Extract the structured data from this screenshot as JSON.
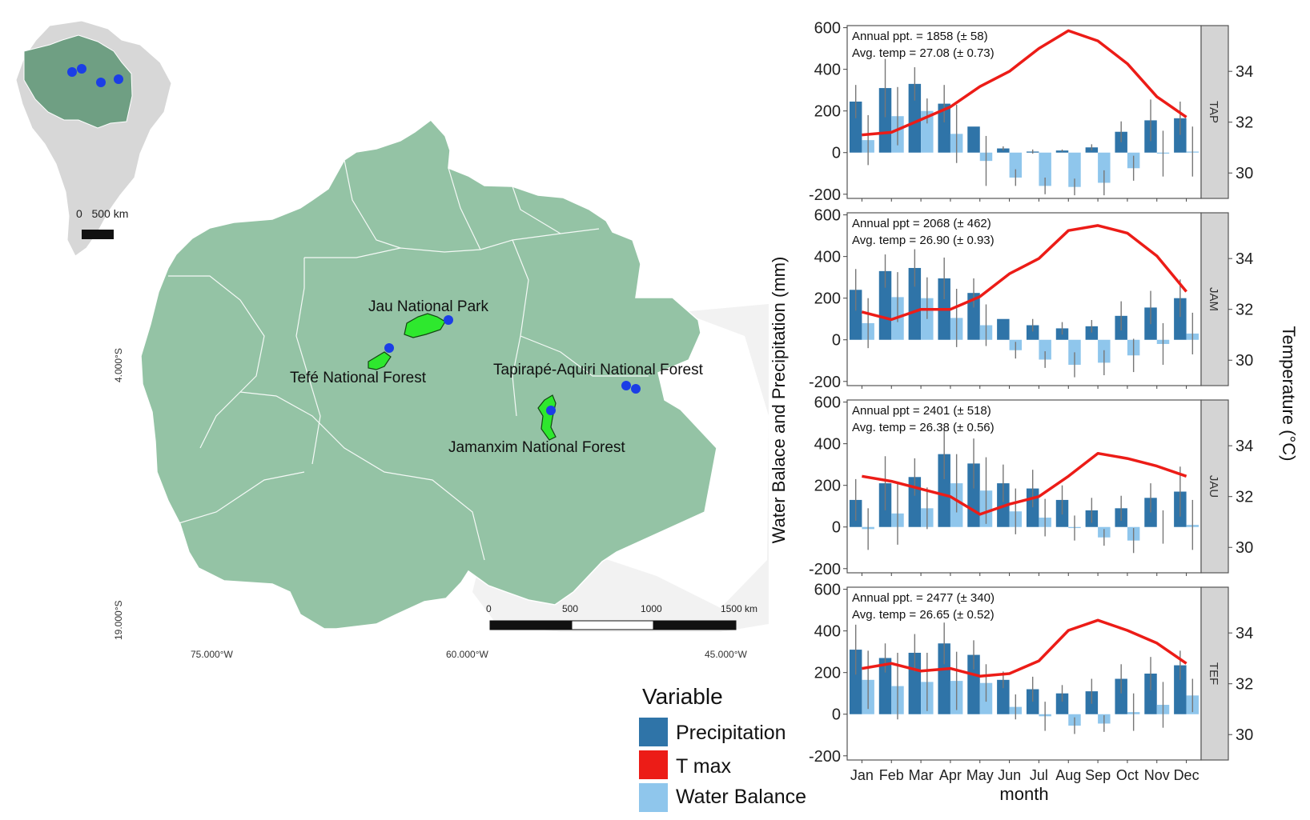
{
  "colors": {
    "precipitation": "#2f74a8",
    "water_balance": "#8fc6ec",
    "tmax": "#ec1c17",
    "study_region": "#94c3a5",
    "land": "#d7d7d7",
    "parks": "#2ee82e",
    "markers": "#1b3ee6",
    "strip": "#d4d4d4"
  },
  "map": {
    "park_labels": [
      "Jau National Park",
      "Tefé National Forest",
      "Tapirapé-Aquiri National Forest",
      "Jamanxim National Forest"
    ],
    "lat_labels": [
      "4.000°S",
      "19.000°S"
    ],
    "lon_labels": [
      "75.000°W",
      "60.000°W",
      "45.000°W"
    ],
    "scalebar_ticks": [
      "0",
      "500",
      "1000",
      "1500 km"
    ],
    "inset_scale_label": "0   500 km"
  },
  "legend": {
    "title": "Variable",
    "items": [
      "Precipitation",
      "T max",
      "Water Balance"
    ]
  },
  "chart_data": {
    "type": "bar",
    "title": "",
    "xlabel": "month",
    "ylabel": "Water Balace and Precipitation (mm)",
    "y2label": "Temperature (°C)",
    "categories": [
      "Jan",
      "Feb",
      "Mar",
      "Apr",
      "May",
      "Jun",
      "Jul",
      "Aug",
      "Sep",
      "Oct",
      "Nov",
      "Dec"
    ],
    "ylim": [
      -220,
      610
    ],
    "yticks": [
      "600",
      "400",
      "200",
      "0",
      "-200"
    ],
    "y2lim": [
      29,
      35.8
    ],
    "y2ticks": [
      "34",
      "32",
      "30"
    ],
    "y2tick_values": [
      34,
      32,
      30
    ],
    "panels": [
      {
        "strip": "TAP",
        "annotation1": "Annual ppt. = 1858 (± 58)",
        "annotation2": "Avg.  temp = 27.08 (± 0.73)",
        "series": [
          {
            "name": "Precipitation",
            "values": [
              245,
              310,
              330,
              235,
              125,
              20,
              5,
              10,
              25,
              100,
              155,
              165
            ],
            "errors": [
              80,
              140,
              80,
              90,
              0,
              10,
              10,
              5,
              15,
              50,
              100,
              80
            ]
          },
          {
            "name": "Water Balance",
            "values": [
              60,
              175,
              200,
              90,
              -40,
              -120,
              -160,
              -165,
              -145,
              -75,
              -5,
              5
            ],
            "errors": [
              120,
              140,
              60,
              140,
              120,
              40,
              40,
              40,
              60,
              60,
              110,
              120
            ]
          },
          {
            "name": "T max",
            "values": [
              31.5,
              31.6,
              32.1,
              32.6,
              33.4,
              34.0,
              34.9,
              35.6,
              35.2,
              34.3,
              33.0,
              32.2
            ]
          }
        ]
      },
      {
        "strip": "JAM",
        "annotation1": "Annual ppt = 2068 (± 462)",
        "annotation2": "Avg.  temp = 26.90 (± 0.93)",
        "series": [
          {
            "name": "Precipitation",
            "values": [
              240,
              330,
              345,
              295,
              225,
              100,
              70,
              55,
              65,
              115,
              155,
              200
            ],
            "errors": [
              100,
              80,
              90,
              100,
              70,
              0,
              30,
              30,
              30,
              70,
              80,
              90
            ]
          },
          {
            "name": "Water Balance",
            "values": [
              80,
              205,
              200,
              105,
              70,
              -50,
              -95,
              -120,
              -110,
              -75,
              -20,
              30
            ],
            "errors": [
              120,
              120,
              100,
              140,
              100,
              40,
              40,
              60,
              60,
              80,
              100,
              100
            ]
          },
          {
            "name": "T max",
            "values": [
              31.9,
              31.6,
              32.0,
              32.0,
              32.5,
              33.4,
              34.0,
              35.1,
              35.3,
              35.0,
              34.1,
              32.7
            ]
          }
        ]
      },
      {
        "strip": "JAU",
        "annotation1": "Annual ppt = 2401 (± 518)",
        "annotation2": "Avg.  temp = 26.38 (± 0.56)",
        "series": [
          {
            "name": "Precipitation",
            "values": [
              130,
              210,
              240,
              350,
              305,
              210,
              185,
              130,
              80,
              90,
              140,
              170
            ],
            "errors": [
              100,
              130,
              90,
              120,
              120,
              90,
              90,
              70,
              60,
              60,
              70,
              120
            ]
          },
          {
            "name": "Water Balance",
            "values": [
              -10,
              65,
              90,
              210,
              175,
              75,
              45,
              -5,
              -50,
              -65,
              0,
              10
            ],
            "errors": [
              100,
              150,
              100,
              140,
              160,
              110,
              90,
              60,
              40,
              60,
              80,
              120
            ]
          },
          {
            "name": "T max",
            "values": [
              32.8,
              32.6,
              32.3,
              32.0,
              31.3,
              31.7,
              32.0,
              32.8,
              33.7,
              33.5,
              33.2,
              32.8
            ]
          }
        ]
      },
      {
        "strip": "TEF",
        "annotation1": "Annual ppt. = 2477 (± 340)",
        "annotation2": "Avg.  temp = 26.65 (± 0.52)",
        "series": [
          {
            "name": "Precipitation",
            "values": [
              310,
              270,
              295,
              340,
              285,
              165,
              120,
              100,
              110,
              170,
              195,
              235
            ],
            "errors": [
              120,
              70,
              90,
              100,
              70,
              40,
              60,
              40,
              60,
              70,
              80,
              70
            ]
          },
          {
            "name": "Water Balance",
            "values": [
              165,
              135,
              155,
              160,
              150,
              35,
              -10,
              -55,
              -45,
              10,
              45,
              90
            ],
            "errors": [
              140,
              160,
              140,
              140,
              90,
              60,
              70,
              40,
              40,
              90,
              110,
              80
            ]
          },
          {
            "name": "T max",
            "values": [
              32.6,
              32.8,
              32.5,
              32.6,
              32.3,
              32.4,
              32.9,
              34.1,
              34.5,
              34.1,
              33.6,
              32.8
            ]
          }
        ]
      }
    ]
  }
}
